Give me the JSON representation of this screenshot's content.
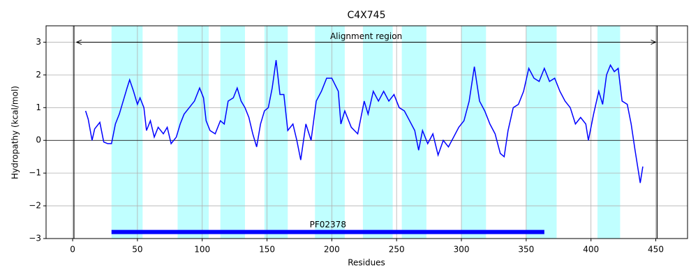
{
  "chart_data": {
    "type": "line",
    "title": "C4X745",
    "xlabel": "Residues",
    "ylabel": "Hydropathy (kcal/mol)",
    "x": [
      10,
      12,
      15,
      17,
      21,
      24,
      27,
      30,
      33,
      36,
      39,
      42,
      44,
      47,
      50,
      52,
      55,
      57,
      60,
      63,
      66,
      70,
      73,
      76,
      80,
      83,
      86,
      90,
      94,
      98,
      101,
      103,
      106,
      110,
      114,
      117,
      120,
      124,
      127,
      130,
      133,
      136,
      139,
      142,
      145,
      148,
      151,
      154,
      157,
      160,
      163,
      166,
      170,
      173,
      176,
      180,
      184,
      188,
      192,
      196,
      200,
      205,
      207,
      210,
      215,
      220,
      225,
      228,
      232,
      236,
      240,
      244,
      248,
      252,
      256,
      260,
      264,
      267,
      270,
      274,
      278,
      282,
      286,
      290,
      294,
      298,
      302,
      306,
      310,
      314,
      318,
      322,
      326,
      330,
      333,
      336,
      340,
      344,
      348,
      352,
      356,
      360,
      364,
      368,
      372,
      376,
      380,
      384,
      388,
      392,
      396,
      398,
      402,
      406,
      409,
      412,
      415,
      418,
      421,
      424,
      428,
      431,
      434,
      436,
      438,
      440
    ],
    "values": [
      0.9,
      0.65,
      0.0,
      0.35,
      0.55,
      -0.05,
      -0.1,
      -0.1,
      0.5,
      0.8,
      1.2,
      1.6,
      1.85,
      1.5,
      1.1,
      1.3,
      1.0,
      0.3,
      0.6,
      0.1,
      0.4,
      0.2,
      0.4,
      -0.1,
      0.1,
      0.5,
      0.8,
      1.0,
      1.2,
      1.6,
      1.3,
      0.6,
      0.3,
      0.2,
      0.6,
      0.5,
      1.2,
      1.3,
      1.6,
      1.2,
      1.0,
      0.7,
      0.2,
      -0.2,
      0.5,
      0.9,
      1.0,
      1.6,
      2.45,
      1.4,
      1.4,
      0.3,
      0.5,
      0.0,
      -0.6,
      0.5,
      0.0,
      1.2,
      1.5,
      1.9,
      1.9,
      1.5,
      0.5,
      0.9,
      0.4,
      0.2,
      1.2,
      0.8,
      1.5,
      1.2,
      1.5,
      1.2,
      1.4,
      1.0,
      0.9,
      0.6,
      0.3,
      -0.3,
      0.3,
      -0.1,
      0.2,
      -0.45,
      0.0,
      -0.2,
      0.1,
      0.4,
      0.6,
      1.2,
      2.25,
      1.2,
      0.9,
      0.5,
      0.2,
      -0.4,
      -0.5,
      0.3,
      1.0,
      1.1,
      1.5,
      2.2,
      1.9,
      1.8,
      2.2,
      1.8,
      1.9,
      1.5,
      1.2,
      1.0,
      0.5,
      0.7,
      0.5,
      0.0,
      0.8,
      1.5,
      1.1,
      2.0,
      2.3,
      2.1,
      2.2,
      1.2,
      1.1,
      0.5,
      -0.3,
      -0.8,
      -1.3,
      -0.8
    ],
    "color": "#0000ff",
    "shaded_regions": [
      [
        30,
        54
      ],
      [
        81,
        105
      ],
      [
        114,
        133
      ],
      [
        148,
        166
      ],
      [
        187,
        210
      ],
      [
        224,
        247
      ],
      [
        254,
        273
      ],
      [
        300,
        319
      ],
      [
        350,
        373.5
      ],
      [
        405,
        422.5
      ]
    ],
    "region_color": "#c0ffff",
    "boundary_lines": [
      1,
      451
    ],
    "alignment": {
      "label": "Alignment region",
      "start": 3,
      "end": 450
    },
    "domain": {
      "label": "PF02378",
      "start": 30,
      "end": 364,
      "y": -2.8,
      "color": "#0000ff"
    },
    "xlim": [
      -20.5,
      474.5
    ],
    "ylim": [
      -3,
      3.5
    ],
    "xticks": [
      0,
      50,
      100,
      150,
      200,
      250,
      300,
      350,
      400,
      450
    ],
    "yticks": [
      {
        "value": -3,
        "label": "−3"
      },
      {
        "value": -2,
        "label": "−2"
      },
      {
        "value": -1,
        "label": "−1"
      },
      0,
      1,
      2,
      3
    ],
    "grid": true
  }
}
